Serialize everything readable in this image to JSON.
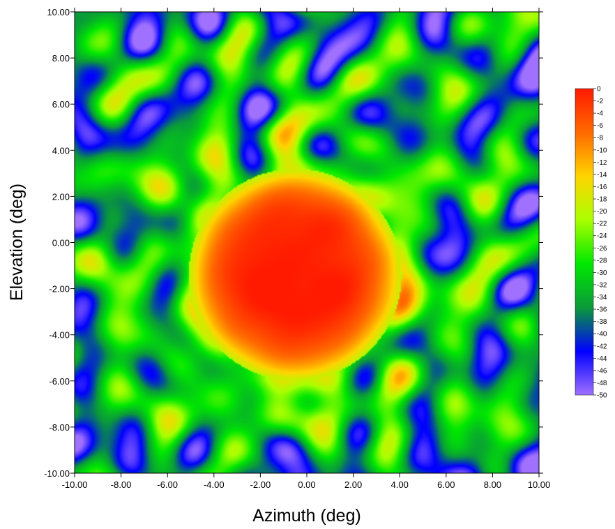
{
  "chart_data": {
    "type": "heatmap",
    "title": "",
    "xlabel": "Azimuth (deg)",
    "ylabel": "Elevation (deg)",
    "xlim": [
      -10,
      10
    ],
    "ylim": [
      -10,
      10
    ],
    "x_ticks": [
      "-10.00",
      "-8.00",
      "-6.00",
      "-4.00",
      "-2.00",
      "0.00",
      "2.00",
      "4.00",
      "6.00",
      "8.00",
      "10.00"
    ],
    "y_ticks": [
      "10.00",
      "8.00",
      "6.00",
      "4.00",
      "2.00",
      "0.00",
      "-2.00",
      "-4.00",
      "-6.00",
      "-8.00",
      "-10.00"
    ],
    "main_lobe": {
      "center": [
        -0.5,
        -1.4
      ],
      "radius": 4.6,
      "peak": 0,
      "edge": -20
    },
    "sidelobe_floor": [
      -50,
      -24
    ],
    "colorbar": {
      "range": [
        -50,
        0
      ],
      "labels": [
        "0",
        "-2",
        "-4",
        "-6",
        "-8",
        "-10",
        "-12",
        "-14",
        "-16",
        "-18",
        "-20",
        "-22",
        "-24",
        "-26",
        "-28",
        "-30",
        "-32",
        "-34",
        "-36",
        "-38",
        "-40",
        "-42",
        "-44",
        "-46",
        "-48",
        "-50"
      ],
      "colors": [
        "#ff1a00",
        "#ff6a00",
        "#ffd400",
        "#aaff00",
        "#00e800",
        "#0a9a3a",
        "#0000ff",
        "#a070ff"
      ]
    },
    "grid": false,
    "legend": "right"
  }
}
